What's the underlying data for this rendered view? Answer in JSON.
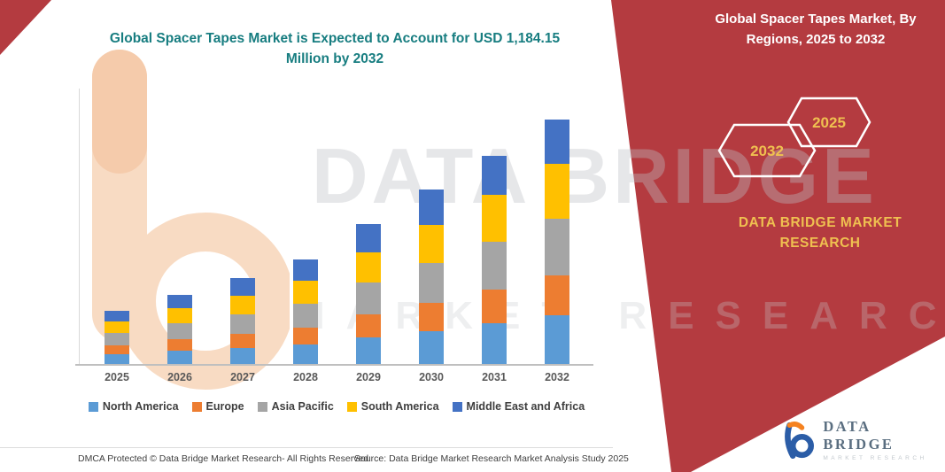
{
  "main_title": "Global Spacer Tapes Market is Expected to Account for USD 1,184.15 Million by 2032",
  "side_panel": {
    "title": "Global Spacer Tapes Market, By Regions, 2025 to 2032",
    "hexagons": [
      "2032",
      "2025"
    ],
    "brand": "DATA BRIDGE MARKET RESEARCH"
  },
  "watermark": {
    "line1": "DATA BRIDGE",
    "line2": "MARKET RESEARCH"
  },
  "logo": {
    "name": "DATA BRIDGE",
    "sub": "MARKET RESEARCH"
  },
  "footer": {
    "dmca": "DMCA Protected © Data Bridge Market Research-  All Rights Reserved.",
    "source": "Source: Data Bridge Market Research  Market Analysis Study 2025"
  },
  "colors": {
    "panel_red": "#B43B40",
    "title_teal": "#177d80",
    "gold": "#EFC050"
  },
  "chart_data": {
    "type": "bar",
    "stacked": true,
    "title": "Global Spacer Tapes Market is Expected to Account for USD 1,184.15 Million by 2032",
    "unit": "USD Million",
    "legend_position": "bottom",
    "grid": false,
    "categories": [
      "2025",
      "2026",
      "2027",
      "2028",
      "2029",
      "2030",
      "2031",
      "2032"
    ],
    "totals": [
      257,
      334,
      416,
      507,
      678,
      845,
      1008,
      1184.15
    ],
    "series": [
      {
        "name": "North America",
        "color": "#5B9BD5",
        "values": [
          47,
          64,
          77,
          94,
          129,
          159,
          197,
          236
        ]
      },
      {
        "name": "Europe",
        "color": "#ED7D31",
        "values": [
          43,
          56,
          69,
          82,
          112,
          137,
          163,
          193
        ]
      },
      {
        "name": "Asia Pacific",
        "color": "#A5A5A5",
        "values": [
          60,
          77,
          94,
          116,
          154,
          193,
          232,
          275
        ]
      },
      {
        "name": "South America",
        "color": "#FFC000",
        "values": [
          56,
          73,
          90,
          112,
          146,
          184,
          227,
          266
        ]
      },
      {
        "name": "Middle East and Africa",
        "color": "#4472C4",
        "values": [
          51,
          64,
          86,
          103,
          137,
          172,
          189,
          214.15
        ]
      }
    ]
  }
}
